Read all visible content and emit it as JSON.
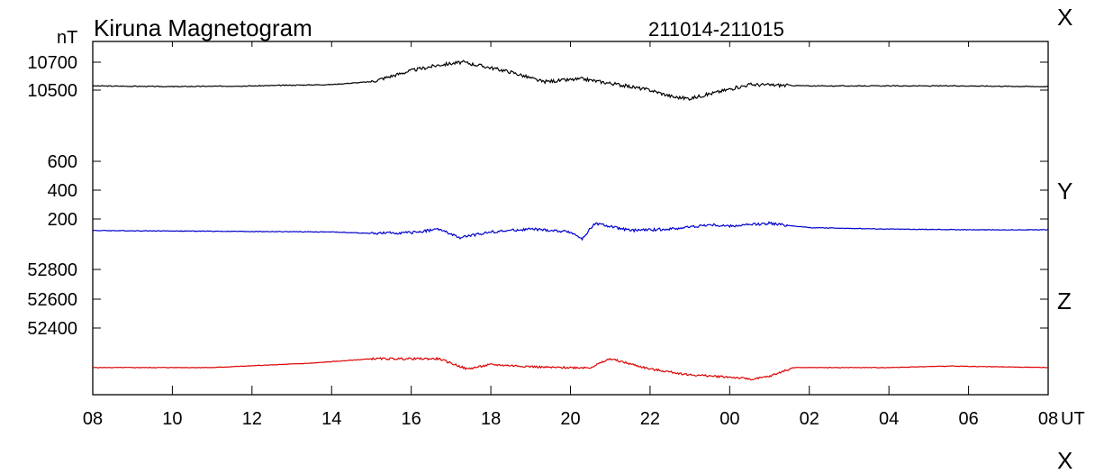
{
  "chart_data": {
    "type": "line",
    "title": "Kiruna Magnetogram",
    "date_range": "211014-211015",
    "unit_label": "nT",
    "x_unit_label": "UT",
    "x_tick_labels": [
      "08",
      "10",
      "12",
      "14",
      "16",
      "18",
      "20",
      "22",
      "00",
      "02",
      "04",
      "06",
      "08"
    ],
    "x_range_hours_from_0800": [
      0,
      24
    ],
    "grid": false,
    "series": [
      {
        "name": "X",
        "color": "#000000",
        "y_ticks": [
          "10700",
          "10500"
        ],
        "approx_baseline_nT": 10530,
        "points": [
          [
            0,
            10530
          ],
          [
            2,
            10525
          ],
          [
            4,
            10530
          ],
          [
            6,
            10540
          ],
          [
            7,
            10560
          ],
          [
            8,
            10640
          ],
          [
            8.7,
            10680
          ],
          [
            9.3,
            10700
          ],
          [
            10,
            10660
          ],
          [
            10.5,
            10630
          ],
          [
            11.3,
            10560
          ],
          [
            12.3,
            10580
          ],
          [
            13.2,
            10540
          ],
          [
            14,
            10500
          ],
          [
            14.6,
            10450
          ],
          [
            15,
            10440
          ],
          [
            15.6,
            10480
          ],
          [
            16.5,
            10540
          ],
          [
            18,
            10530
          ],
          [
            20,
            10530
          ],
          [
            22,
            10530
          ],
          [
            24,
            10525
          ]
        ]
      },
      {
        "name": "Y",
        "color": "#0000cc",
        "y_ticks": [
          "600",
          "400",
          "200"
        ],
        "approx_baseline_nT": 120,
        "points": [
          [
            0,
            120
          ],
          [
            3,
            115
          ],
          [
            6,
            110
          ],
          [
            7,
            100
          ],
          [
            8,
            105
          ],
          [
            8.7,
            130
          ],
          [
            9.2,
            70
          ],
          [
            10,
            110
          ],
          [
            11,
            130
          ],
          [
            12,
            110
          ],
          [
            12.3,
            60
          ],
          [
            12.6,
            170
          ],
          [
            13.5,
            120
          ],
          [
            14.5,
            130
          ],
          [
            15.5,
            160
          ],
          [
            16,
            150
          ],
          [
            17,
            170
          ],
          [
            18,
            140
          ],
          [
            20,
            130
          ],
          [
            22,
            125
          ],
          [
            24,
            125
          ]
        ]
      },
      {
        "name": "Z",
        "color": "#dd0000",
        "y_ticks": [
          "52800",
          "52600",
          "52400"
        ],
        "approx_baseline_nT": 52130,
        "points": [
          [
            0,
            52130
          ],
          [
            3,
            52130
          ],
          [
            5.5,
            52160
          ],
          [
            7,
            52190
          ],
          [
            8.7,
            52190
          ],
          [
            9.4,
            52120
          ],
          [
            10,
            52150
          ],
          [
            10.8,
            52140
          ],
          [
            11.5,
            52130
          ],
          [
            12.5,
            52130
          ],
          [
            13,
            52190
          ],
          [
            14,
            52120
          ],
          [
            15,
            52080
          ],
          [
            16,
            52065
          ],
          [
            16.6,
            52050
          ],
          [
            17,
            52070
          ],
          [
            17.6,
            52130
          ],
          [
            20,
            52130
          ],
          [
            21.5,
            52140
          ],
          [
            24,
            52130
          ]
        ]
      }
    ]
  }
}
